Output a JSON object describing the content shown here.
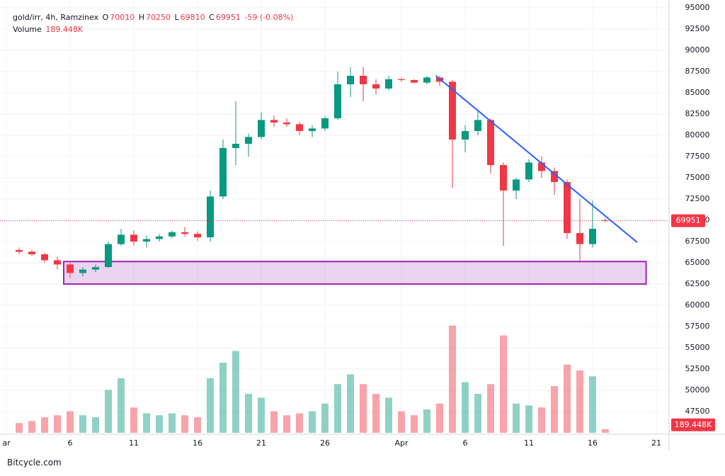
{
  "header": {
    "symbol": "gold/irr, 4h, Ramzinex",
    "ohlc_letters": [
      "O",
      "H",
      "L",
      "C"
    ],
    "change": "-59 (-0.08%)",
    "volume_title": "Volume",
    "volume_label": "189.448K"
  },
  "chart_data": {
    "type": "candlestick",
    "x": [
      1,
      2,
      3,
      4,
      5,
      6,
      7,
      8,
      9,
      10,
      11,
      12,
      13,
      14,
      15,
      16,
      17,
      18,
      19,
      20,
      21,
      22,
      23,
      24,
      25,
      26,
      27,
      28,
      29,
      30,
      31,
      32,
      33,
      34,
      35,
      36,
      37,
      38,
      39,
      40,
      41,
      42,
      43,
      44,
      45,
      46,
      47
    ],
    "open": [
      66500,
      66300,
      66000,
      65300,
      64800,
      63800,
      64200,
      64500,
      67200,
      68300,
      67500,
      67800,
      68100,
      68600,
      68400,
      68000,
      72800,
      78500,
      79000,
      79800,
      81800,
      81500,
      81300,
      80500,
      80800,
      82000,
      86000,
      87000,
      86000,
      85500,
      86600,
      86500,
      86200,
      86800,
      86300,
      79500,
      80500,
      81800,
      76500,
      73500,
      74800,
      76800,
      75800,
      74500,
      68500,
      67200,
      70010
    ],
    "high": [
      66800,
      66500,
      66200,
      65700,
      65000,
      64500,
      64800,
      67500,
      69000,
      68800,
      68200,
      68400,
      68800,
      69200,
      68700,
      73500,
      79500,
      84000,
      80200,
      82700,
      82300,
      82000,
      81600,
      81200,
      82300,
      87500,
      88000,
      88000,
      86600,
      87000,
      86800,
      86600,
      87000,
      87000,
      86500,
      81200,
      82800,
      82000,
      76800,
      75000,
      77200,
      77500,
      76200,
      74800,
      72500,
      72300,
      70250
    ],
    "low": [
      66000,
      65800,
      65000,
      64200,
      63200,
      63400,
      63900,
      64400,
      67000,
      67000,
      66800,
      67500,
      67900,
      68100,
      67600,
      67500,
      72500,
      76500,
      77500,
      79500,
      81000,
      81000,
      80000,
      79800,
      80500,
      81800,
      84500,
      84000,
      84800,
      85300,
      86300,
      86100,
      86000,
      85800,
      73800,
      78000,
      80000,
      75500,
      67000,
      72500,
      74500,
      75000,
      73000,
      67800,
      65000,
      66800,
      69810
    ],
    "close": [
      66300,
      66000,
      65300,
      64800,
      63800,
      64200,
      64500,
      67200,
      68300,
      67500,
      67800,
      68100,
      68600,
      68400,
      68000,
      72800,
      78500,
      79000,
      79800,
      81800,
      81500,
      81300,
      80500,
      80800,
      82000,
      86000,
      87000,
      86000,
      85500,
      86600,
      86500,
      86200,
      86800,
      86300,
      79500,
      80500,
      81800,
      76500,
      73500,
      74800,
      76800,
      75800,
      74500,
      68500,
      67200,
      69000,
      69951
    ],
    "volume": [
      500,
      600,
      800,
      900,
      1100,
      900,
      800,
      2200,
      2800,
      1300,
      1000,
      900,
      1000,
      900,
      800,
      2800,
      3600,
      4200,
      2000,
      1800,
      1100,
      900,
      1000,
      1100,
      1500,
      2500,
      3000,
      2500,
      2000,
      1800,
      1100,
      900,
      1200,
      1500,
      5500,
      2600,
      2000,
      2500,
      5000,
      1500,
      1400,
      1300,
      2400,
      3500,
      3200,
      2900,
      189.448
    ],
    "up_color": "#089981",
    "down_color": "#f23645",
    "xlim": [
      0,
      52
    ],
    "xticks": [
      {
        "value": 0,
        "label": "ar"
      },
      {
        "value": 5,
        "label": "6"
      },
      {
        "value": 10,
        "label": "11"
      },
      {
        "value": 15,
        "label": "16"
      },
      {
        "value": 20,
        "label": "21"
      },
      {
        "value": 25,
        "label": "26"
      },
      {
        "value": 31,
        "label": "Apr"
      },
      {
        "value": 36,
        "label": "6"
      },
      {
        "value": 41,
        "label": "11"
      },
      {
        "value": 46,
        "label": "16"
      },
      {
        "value": 51,
        "label": "21"
      }
    ],
    "ylim": [
      45000,
      95000
    ],
    "yticks": [
      47500,
      50000,
      52500,
      55000,
      57500,
      60000,
      62500,
      65000,
      67500,
      70000,
      72500,
      75000,
      77500,
      80000,
      82500,
      85000,
      87500,
      90000,
      92500,
      95000
    ],
    "vlim": [
      0,
      6000
    ],
    "grid": true,
    "drawings": {
      "zone": {
        "x": [
          4.5,
          50.2
        ],
        "y": [
          62500,
          65150
        ],
        "color": "#9c27b0"
      },
      "trendline": {
        "x": [
          33.7,
          49.5
        ],
        "y": [
          87000,
          67400
        ],
        "color": "#2962ff"
      }
    }
  },
  "footer": {
    "brand": "Bitcycle.com"
  }
}
